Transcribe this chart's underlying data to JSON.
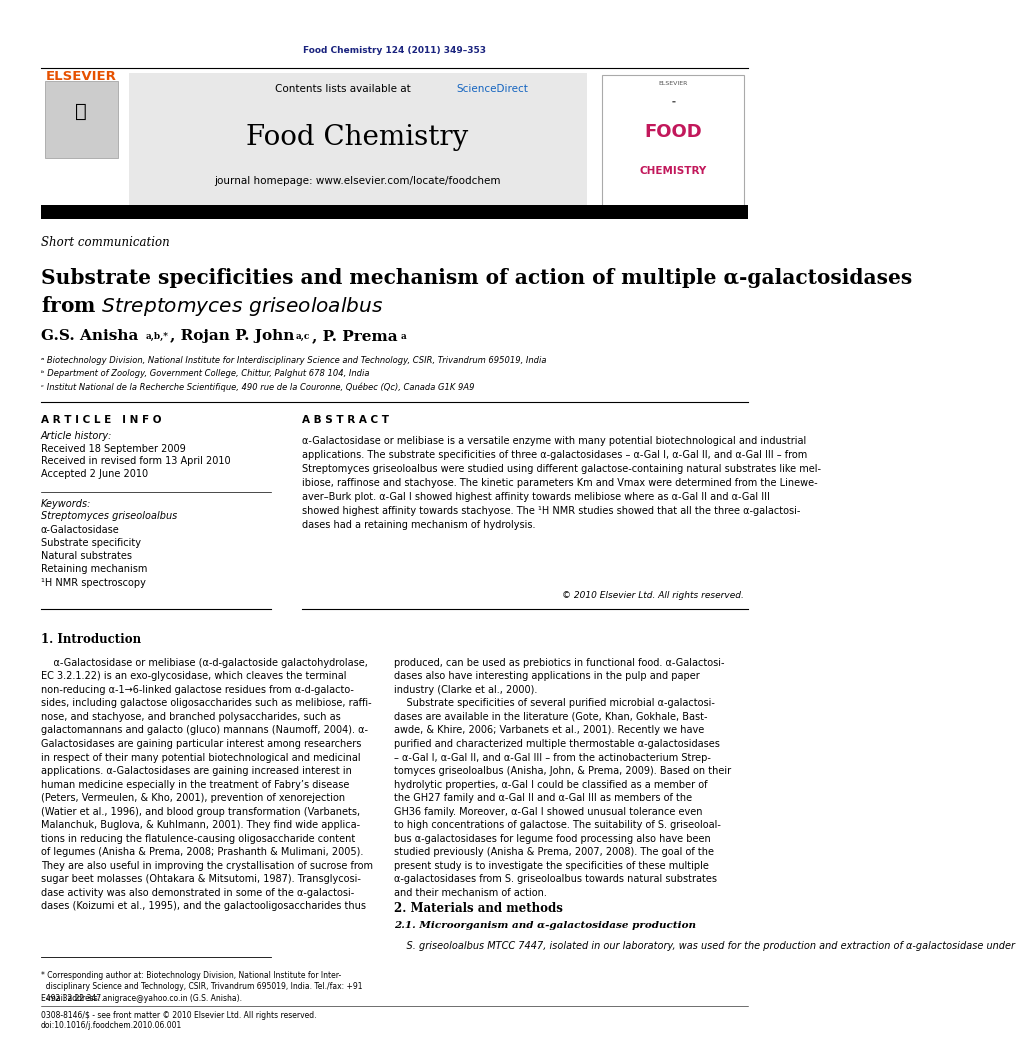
{
  "page_width": 9.92,
  "page_height": 13.23,
  "bg_color": "#ffffff",
  "journal_ref": "Food Chemistry 124 (2011) 349–353",
  "journal_ref_color": "#1a237e",
  "header_bg": "#e8e8e8",
  "science_direct_color": "#1565c0",
  "journal_title": "Food Chemistry",
  "journal_url": "journal homepage: www.elsevier.com/locate/foodchem",
  "elsevier_color": "#e65100",
  "elsevier_text": "ELSEVIER",
  "food_chemistry_logo_color": "#c2185b",
  "section_label": "Short communication",
  "paper_title_line1": "Substrate specificities and mechanism of action of multiple α-galactosidases",
  "paper_title_line2": "from Streptomyces griseoloalbus",
  "affil_a": "ᵃ Biotechnology Division, National Institute for Interdisciplinary Science and Technology, CSIR, Trivandrum 695019, India",
  "affil_b": "ᵇ Department of Zoology, Government College, Chittur, Palghut 678 104, India",
  "affil_c": "ᶜ Institut National de la Recherche Scientifique, 490 rue de la Couronne, Québec (Qc), Canada G1K 9A9",
  "article_info_header": "A R T I C L E   I N F O",
  "abstract_header": "A B S T R A C T",
  "article_history_label": "Article history:",
  "received1": "Received 18 September 2009",
  "received2": "Received in revised form 13 April 2010",
  "accepted": "Accepted 2 June 2010",
  "keywords_label": "Keywords:",
  "keywords": [
    "Streptomyces griseoloalbus",
    "α-Galactosidase",
    "Substrate specificity",
    "Natural substrates",
    "Retaining mechanism",
    "¹H NMR spectroscopy"
  ],
  "copyright": "© 2010 Elsevier Ltd. All rights reserved.",
  "intro_header": "1. Introduction",
  "section2_header": "2. Materials and methods",
  "section21_header": "2.1. Microorganism and α-galactosidase production",
  "section21_text": "    S. griseoloalbus MTCC 7447, isolated in our laboratory, was used for the production and extraction of α-galactosidase under",
  "footnote_star": "* Corresponding author at: Biotechnology Division, National Institute for Interdisciplinary Science and Technology, CSIR, Trivandrum 695019, India. Tel./fax: +91\n  492 32 22 347.",
  "footnote_email": "E-mail address: anigrace@yahoo.co.in (G.S. Anisha).",
  "footer_left": "0308-8146/$ - see front matter © 2010 Elsevier Ltd. All rights reserved.",
  "footer_doi": "doi:10.1016/j.foodchem.2010.06.001"
}
